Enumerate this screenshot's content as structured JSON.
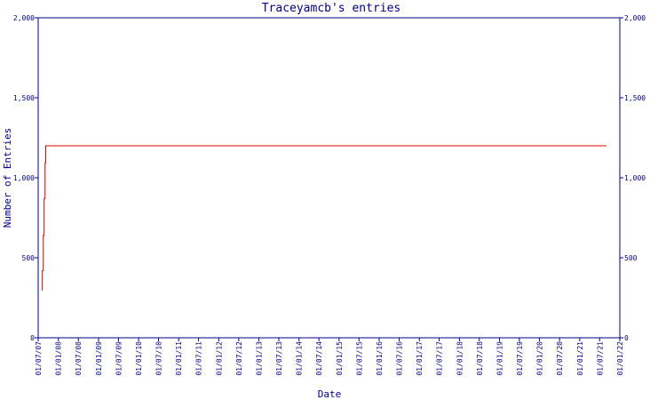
{
  "chart_data": {
    "type": "line",
    "title": "Traceyamcb's entries",
    "xlabel": "Date",
    "ylabel": "Number of Entries",
    "ylim": [
      0,
      2000
    ],
    "yticks": [
      0,
      500,
      1000,
      1500,
      2000
    ],
    "ytick_labels": [
      "0",
      "500",
      "1,000",
      "1,500",
      "2,000"
    ],
    "xlim": [
      "2007-07-01",
      "2022-01-01"
    ],
    "xticks": [
      "2007-07-01",
      "2008-01-01",
      "2008-07-01",
      "2009-01-01",
      "2009-07-01",
      "2010-01-01",
      "2010-07-01",
      "2011-01-01",
      "2011-07-01",
      "2012-01-01",
      "2012-07-01",
      "2013-01-01",
      "2013-07-01",
      "2014-01-01",
      "2014-07-01",
      "2015-01-01",
      "2015-07-01",
      "2016-01-01",
      "2016-07-01",
      "2017-01-01",
      "2017-07-01",
      "2018-01-01",
      "2018-07-01",
      "2019-01-01",
      "2019-07-01",
      "2020-01-01",
      "2020-07-01",
      "2021-01-01",
      "2021-07-01",
      "2022-01-01"
    ],
    "xtick_labels": [
      "01/07/07",
      "01/01/08",
      "01/07/08",
      "01/01/09",
      "01/07/09",
      "01/01/10",
      "01/07/10",
      "01/01/11",
      "01/07/11",
      "01/01/12",
      "01/07/12",
      "01/01/13",
      "01/07/13",
      "01/01/14",
      "01/07/14",
      "01/01/15",
      "01/07/15",
      "01/01/16",
      "01/07/16",
      "01/01/17",
      "01/07/17",
      "01/01/18",
      "01/07/18",
      "01/01/19",
      "01/07/19",
      "01/01/20",
      "01/07/20",
      "01/01/21",
      "01/07/21",
      "01/01/22"
    ],
    "grid": false,
    "series": [
      {
        "color": "#dd0000",
        "points": [
          [
            "2007-08-01",
            300
          ],
          [
            "2007-08-08",
            420
          ],
          [
            "2007-08-16",
            640
          ],
          [
            "2007-08-24",
            870
          ],
          [
            "2007-09-01",
            1090
          ],
          [
            "2007-09-08",
            1200
          ],
          [
            "2021-09-01",
            1200
          ]
        ]
      }
    ]
  }
}
